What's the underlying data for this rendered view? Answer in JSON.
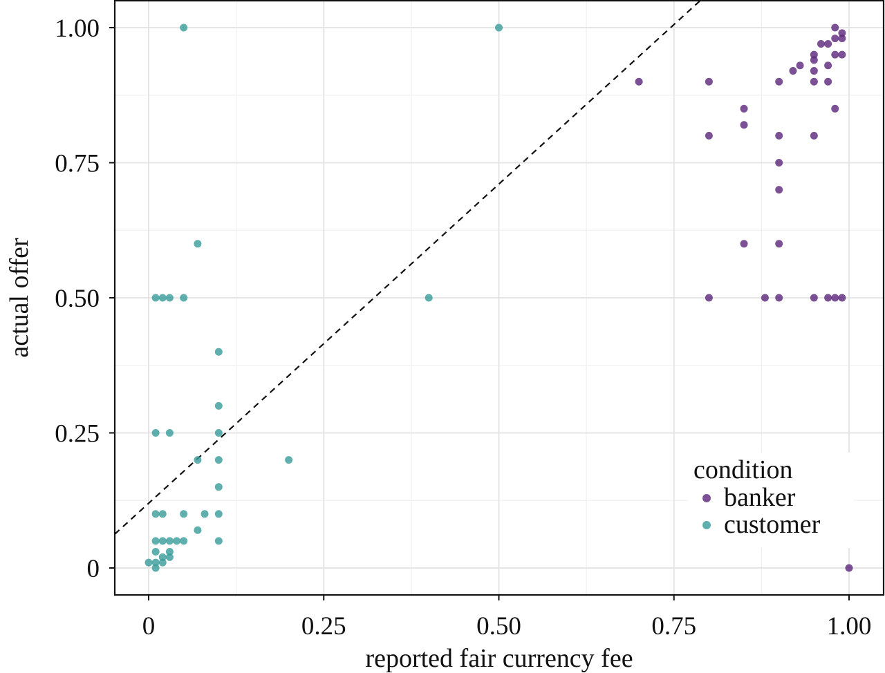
{
  "chart_data": {
    "type": "scatter",
    "xlabel": "reported fair currency fee",
    "ylabel": "actual offer",
    "xlim": [
      0,
      1
    ],
    "ylim": [
      0,
      1
    ],
    "x_ticks": [
      0,
      0.25,
      0.5,
      0.75,
      1.0
    ],
    "x_tick_labels": [
      "0",
      "0.25",
      "0.50",
      "0.75",
      "1.00"
    ],
    "y_ticks": [
      0,
      0.25,
      0.5,
      0.75,
      1.0
    ],
    "y_tick_labels": [
      "0",
      "0.25",
      "0.50",
      "0.75",
      "1.00"
    ],
    "grid": true,
    "reference_line": {
      "type": "identity",
      "style": "dashed",
      "color": "#111111"
    },
    "legend": {
      "title": "condition",
      "placement": "bottom-right",
      "entries": [
        "banker",
        "customer"
      ]
    },
    "series": [
      {
        "name": "banker",
        "color": "#5e2a7e",
        "points": [
          [
            0.98,
            1.0
          ],
          [
            0.99,
            0.99
          ],
          [
            0.98,
            0.98
          ],
          [
            0.99,
            0.98
          ],
          [
            0.96,
            0.97
          ],
          [
            0.97,
            0.97
          ],
          [
            0.95,
            0.95
          ],
          [
            0.98,
            0.95
          ],
          [
            0.99,
            0.95
          ],
          [
            0.95,
            0.94
          ],
          [
            0.93,
            0.93
          ],
          [
            0.97,
            0.93
          ],
          [
            0.92,
            0.92
          ],
          [
            0.95,
            0.92
          ],
          [
            0.7,
            0.9
          ],
          [
            0.8,
            0.9
          ],
          [
            0.9,
            0.9
          ],
          [
            0.95,
            0.9
          ],
          [
            0.97,
            0.9
          ],
          [
            0.85,
            0.85
          ],
          [
            0.98,
            0.85
          ],
          [
            0.85,
            0.82
          ],
          [
            0.8,
            0.8
          ],
          [
            0.9,
            0.8
          ],
          [
            0.95,
            0.8
          ],
          [
            0.9,
            0.75
          ],
          [
            0.9,
            0.7
          ],
          [
            0.85,
            0.6
          ],
          [
            0.9,
            0.6
          ],
          [
            0.8,
            0.5
          ],
          [
            0.88,
            0.5
          ],
          [
            0.9,
            0.5
          ],
          [
            0.95,
            0.5
          ],
          [
            0.97,
            0.5
          ],
          [
            0.98,
            0.5
          ],
          [
            0.99,
            0.5
          ],
          [
            1.0,
            0.0
          ]
        ]
      },
      {
        "name": "customer",
        "color": "#3a9e9b",
        "points": [
          [
            0.05,
            1.0
          ],
          [
            0.5,
            1.0
          ],
          [
            0.07,
            0.6
          ],
          [
            0.01,
            0.5
          ],
          [
            0.02,
            0.5
          ],
          [
            0.03,
            0.5
          ],
          [
            0.05,
            0.5
          ],
          [
            0.4,
            0.5
          ],
          [
            0.1,
            0.4
          ],
          [
            0.1,
            0.3
          ],
          [
            0.01,
            0.25
          ],
          [
            0.03,
            0.25
          ],
          [
            0.1,
            0.25
          ],
          [
            0.07,
            0.2
          ],
          [
            0.1,
            0.2
          ],
          [
            0.2,
            0.2
          ],
          [
            0.1,
            0.15
          ],
          [
            0.01,
            0.1
          ],
          [
            0.02,
            0.1
          ],
          [
            0.05,
            0.1
          ],
          [
            0.08,
            0.1
          ],
          [
            0.1,
            0.1
          ],
          [
            0.07,
            0.07
          ],
          [
            0.01,
            0.05
          ],
          [
            0.02,
            0.05
          ],
          [
            0.03,
            0.05
          ],
          [
            0.04,
            0.05
          ],
          [
            0.05,
            0.05
          ],
          [
            0.1,
            0.05
          ],
          [
            0.01,
            0.03
          ],
          [
            0.03,
            0.03
          ],
          [
            0.02,
            0.02
          ],
          [
            0.03,
            0.02
          ],
          [
            0.0,
            0.01
          ],
          [
            0.01,
            0.01
          ],
          [
            0.02,
            0.01
          ],
          [
            0.01,
            0.0
          ]
        ]
      }
    ]
  }
}
